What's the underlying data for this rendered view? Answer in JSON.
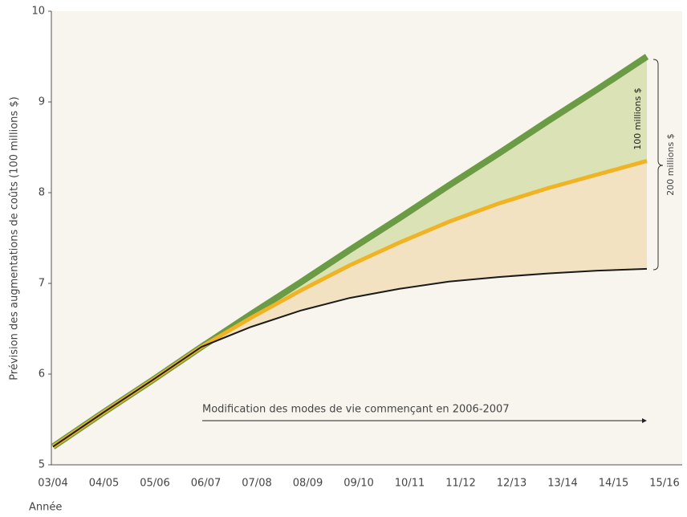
{
  "chart_data": {
    "type": "line",
    "y_label": "Prévision des augmentations de coûts (100 millions $)",
    "x_label": "Année",
    "categories": [
      "03/04",
      "04/05",
      "05/06",
      "06/07",
      "07/08",
      "08/09",
      "09/10",
      "10/11",
      "11/12",
      "12/13",
      "13/14",
      "14/15",
      "15/16"
    ],
    "series": [
      {
        "name": "Vert",
        "color": "#6b9b45",
        "values": [
          5.2,
          5.57,
          5.93,
          6.3,
          6.66,
          7.01,
          7.37,
          7.72,
          8.08,
          8.43,
          8.79,
          9.14,
          9.5
        ]
      },
      {
        "name": "Orange",
        "color": "#f0b323",
        "values": [
          5.2,
          5.57,
          5.93,
          6.3,
          6.62,
          6.92,
          7.2,
          7.45,
          7.68,
          7.88,
          8.05,
          8.2,
          8.35
        ]
      },
      {
        "name": "Noir",
        "color": "#1a1a1a",
        "values": [
          5.2,
          5.57,
          5.93,
          6.3,
          6.52,
          6.7,
          6.84,
          6.94,
          7.02,
          7.07,
          7.11,
          7.14,
          7.16
        ]
      }
    ],
    "ylim": [
      5,
      10
    ],
    "yticks": [
      5,
      6,
      7,
      8,
      9,
      10
    ],
    "annotations": [
      "100 millions $",
      "200 millions $",
      "Modification des modes de vie commençant en 2006-2007"
    ]
  }
}
